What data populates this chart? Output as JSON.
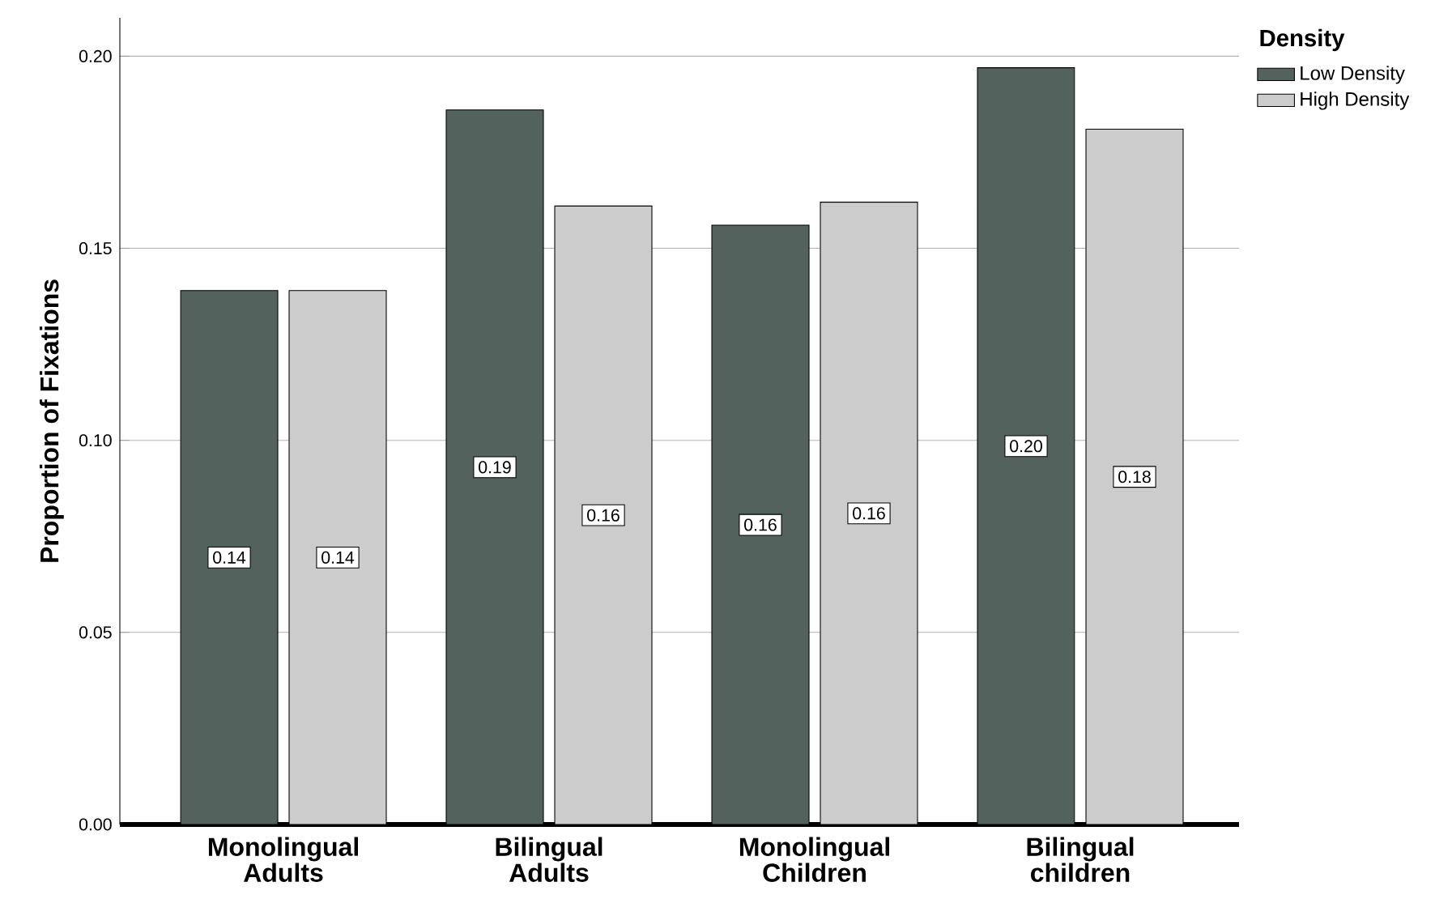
{
  "chart_data": {
    "type": "bar",
    "ylabel": "Proportion of Fixations",
    "legend_title": "Density",
    "categories": [
      "Monolingual Adults",
      "Bilingual Adults",
      "Monolingual Children",
      "Bilingual children"
    ],
    "series": [
      {
        "name": "Low Density",
        "color": "#53625c",
        "values": [
          0.139,
          0.186,
          0.156,
          0.197
        ],
        "value_labels": [
          "0.14",
          "0.19",
          "0.16",
          "0.20"
        ]
      },
      {
        "name": "High Density",
        "color": "#cccccc",
        "values": [
          0.139,
          0.161,
          0.162,
          0.181
        ],
        "value_labels": [
          "0.14",
          "0.16",
          "0.16",
          "0.18"
        ]
      }
    ],
    "ylim": [
      0,
      0.21
    ],
    "yticks": [
      {
        "value": 0,
        "label": "0.00"
      },
      {
        "value": 0.05,
        "label": "0.05"
      },
      {
        "value": 0.1,
        "label": "0.10"
      },
      {
        "value": 0.15,
        "label": "0.15"
      },
      {
        "value": 0.2,
        "label": "0.20"
      }
    ],
    "grid": "y",
    "legend": "top right"
  }
}
